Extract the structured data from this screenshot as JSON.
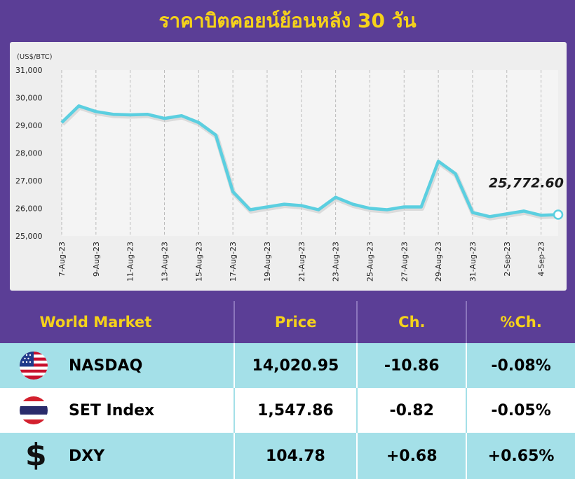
{
  "title": "ราคาบิตคอยน์ย้อนหลัง 30 วัน",
  "chart_data": {
    "type": "line",
    "unit_label": "(US$/BTC)",
    "ylim": [
      25000,
      31000
    ],
    "y_ticks": [
      "25,000",
      "26,000",
      "27,000",
      "28,000",
      "29,000",
      "30,000",
      "31,000"
    ],
    "x_tick_labels": [
      "7-Aug-23",
      "9-Aug-23",
      "11-Aug-23",
      "13-Aug-23",
      "15-Aug-23",
      "17-Aug-23",
      "19-Aug-23",
      "21-Aug-23",
      "23-Aug-23",
      "25-Aug-23",
      "27-Aug-23",
      "29-Aug-23",
      "31-Aug-23",
      "2-Sep-23",
      "4-Sep-23"
    ],
    "x": [
      "7-Aug-23",
      "8-Aug-23",
      "9-Aug-23",
      "10-Aug-23",
      "11-Aug-23",
      "12-Aug-23",
      "13-Aug-23",
      "14-Aug-23",
      "15-Aug-23",
      "16-Aug-23",
      "17-Aug-23",
      "18-Aug-23",
      "19-Aug-23",
      "20-Aug-23",
      "21-Aug-23",
      "22-Aug-23",
      "23-Aug-23",
      "24-Aug-23",
      "25-Aug-23",
      "26-Aug-23",
      "27-Aug-23",
      "28-Aug-23",
      "29-Aug-23",
      "30-Aug-23",
      "31-Aug-23",
      "1-Sep-23",
      "2-Sep-23",
      "3-Sep-23",
      "4-Sep-23",
      "5-Sep-23"
    ],
    "series": [
      {
        "values": [
          29100,
          29700,
          29500,
          29400,
          29380,
          29400,
          29250,
          29350,
          29100,
          28650,
          26600,
          25950,
          26050,
          26150,
          26100,
          25950,
          26400,
          26150,
          26000,
          25950,
          26050,
          26050,
          27700,
          27250,
          25850,
          25700,
          25800,
          25900,
          25750,
          25772.6
        ]
      }
    ],
    "last_value_label": "25,772.60",
    "grid": "vertical-dashed",
    "line_color": "#5bcfe0"
  },
  "table": {
    "headers": [
      "World Market",
      "Price",
      "Ch.",
      "%Ch."
    ],
    "rows": [
      {
        "icon": "us-flag-icon",
        "name": "NASDAQ",
        "price": "14,020.95",
        "ch": "-10.86",
        "pct": "-0.08%"
      },
      {
        "icon": "thai-flag-icon",
        "name": "SET Index",
        "price": "1,547.86",
        "ch": "-0.82",
        "pct": "-0.05%"
      },
      {
        "icon": "dollar-icon",
        "symbol": "$",
        "name": "DXY",
        "price": "104.78",
        "ch": "+0.68",
        "pct": "+0.65%"
      }
    ]
  },
  "colors": {
    "banner": "#5b3e96",
    "title": "#f5d21a",
    "teal_row": "#a4e0e8"
  }
}
